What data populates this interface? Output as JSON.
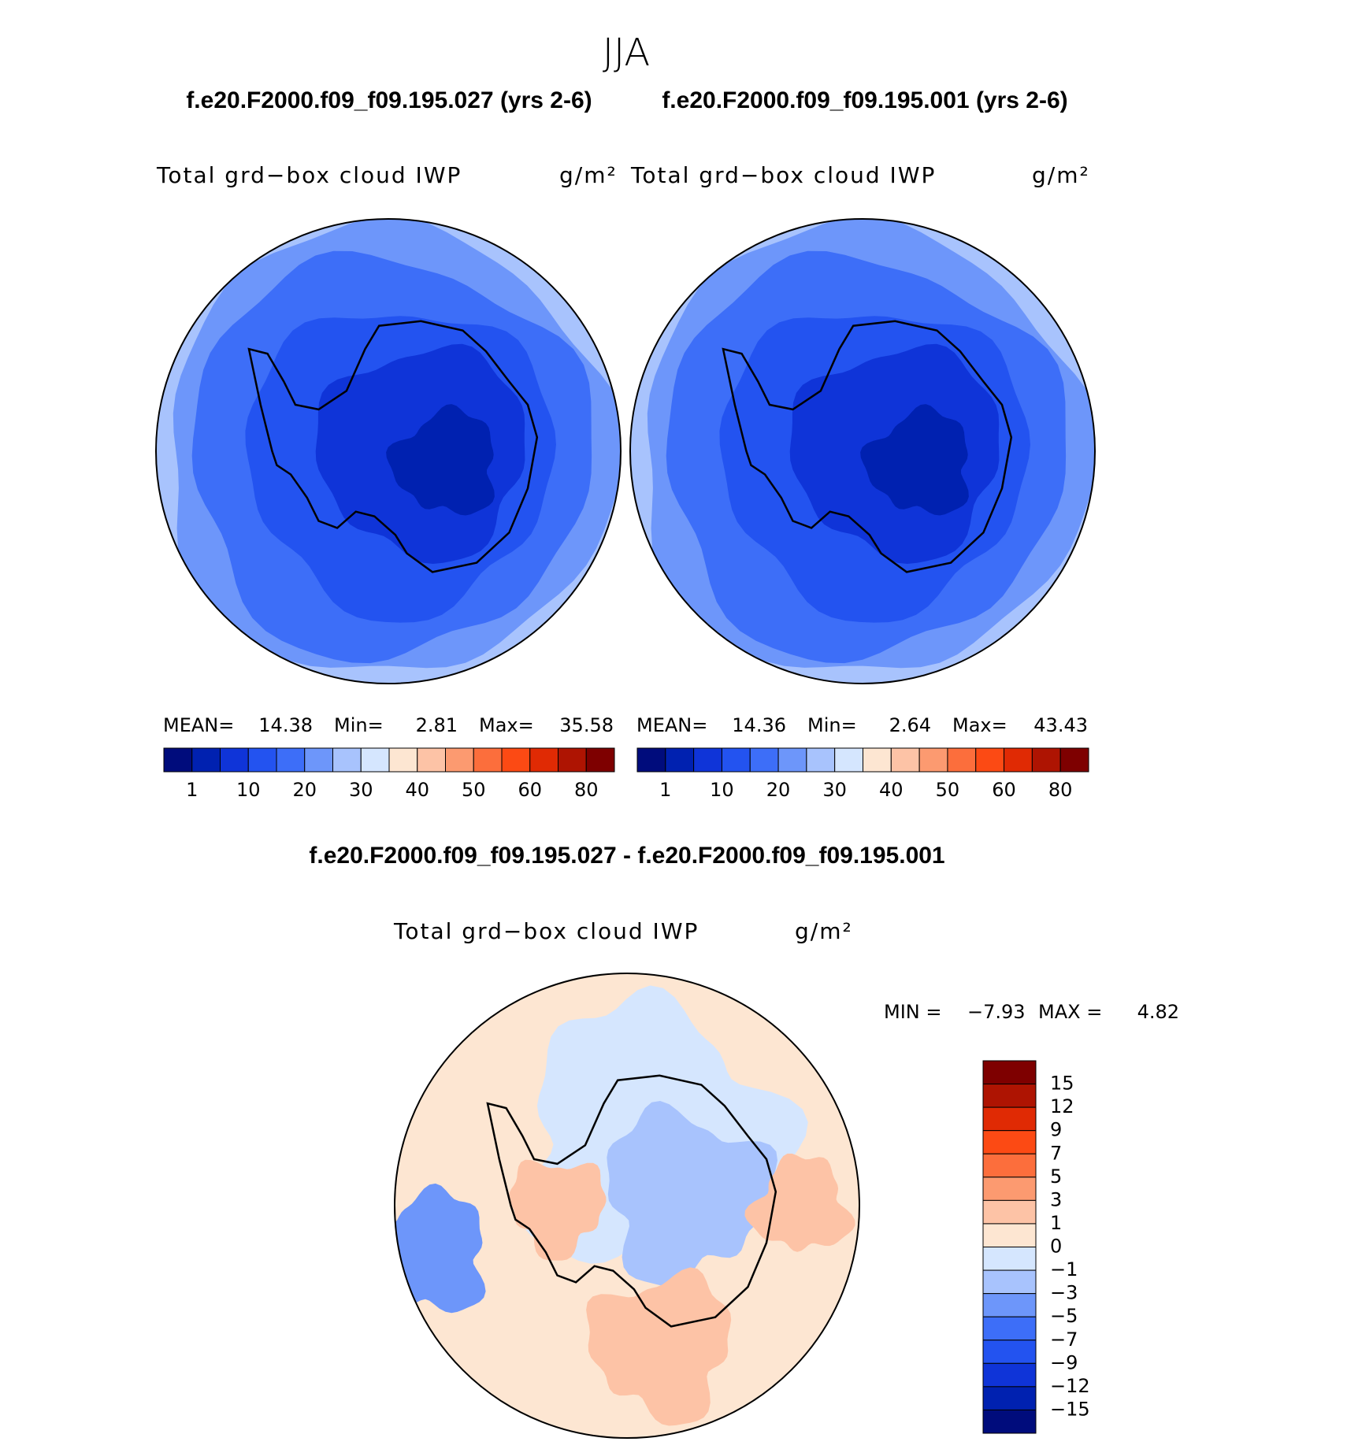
{
  "header": {
    "title": "JJA"
  },
  "panels": [
    {
      "case": "f.e20.F2000.f09_f09.195.027 (yrs 2-6)",
      "variable": "Total grd−box cloud IWP",
      "units": "g/m²",
      "stats": {
        "mean_label": "MEAN=",
        "mean": "14.38",
        "min_label": "Min=",
        "min": "2.81",
        "max_label": "Max=",
        "max": "35.58"
      }
    },
    {
      "case": "f.e20.F2000.f09_f09.195.001 (yrs 2-6)",
      "variable": "Total grd−box cloud IWP",
      "units": "g/m²",
      "stats": {
        "mean_label": "MEAN=",
        "mean": "14.36",
        "min_label": "Min=",
        "min": "2.64",
        "max_label": "Max=",
        "max": "43.43"
      }
    }
  ],
  "colorbar": {
    "colors": [
      "#000c7c",
      "#0021b0",
      "#0f34d8",
      "#2353f0",
      "#3d6ef8",
      "#6d96fa",
      "#a8c3fd",
      "#d5e6fe",
      "#fde6d2",
      "#fdc3a6",
      "#fc9a70",
      "#fc6e3c",
      "#fc4a14",
      "#e02a04",
      "#ae1402",
      "#7e0000"
    ],
    "labels": [
      "1",
      "10",
      "20",
      "30",
      "40",
      "50",
      "60",
      "80"
    ]
  },
  "difference": {
    "title": "f.e20.F2000.f09_f09.195.027 - f.e20.F2000.f09_f09.195.001",
    "variable": "Total grd−box cloud IWP",
    "units": "g/m²",
    "min_label": "MIN =",
    "min": "−7.93",
    "max_label": "MAX =",
    "max": "4.82",
    "colorbar": {
      "colors": [
        "#7e0000",
        "#ae1402",
        "#e02a04",
        "#fc4a14",
        "#fc6e3c",
        "#fc9a70",
        "#fdc3a6",
        "#fde6d2",
        "#d5e6fe",
        "#a8c3fd",
        "#6d96fa",
        "#3d6ef8",
        "#2353f0",
        "#0f34d8",
        "#0021b0",
        "#000c7c"
      ],
      "labels": [
        "15",
        "12",
        "9",
        "7",
        "5",
        "3",
        "1",
        "0",
        "−1",
        "−3",
        "−5",
        "−7",
        "−9",
        "−12",
        "−15"
      ]
    }
  }
}
